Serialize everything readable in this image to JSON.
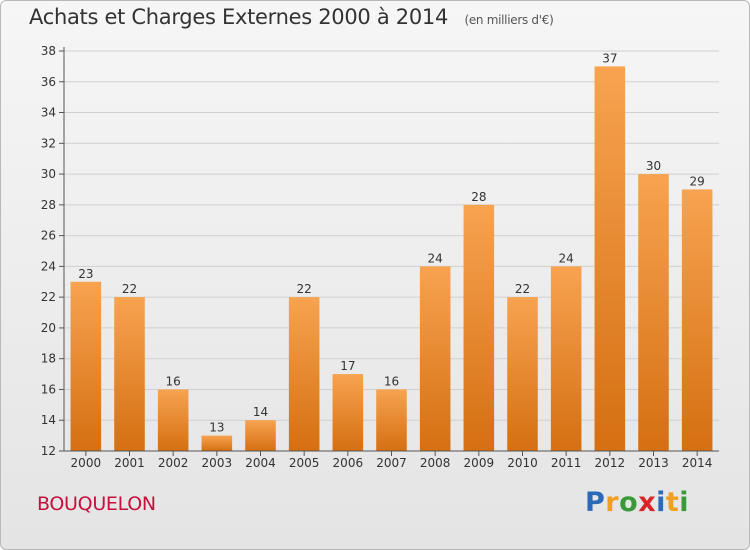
{
  "header": {
    "title": "Achats et Charges Externes 2000 à 2014",
    "subtitle": "(en milliers d'€)"
  },
  "commune": "BOUQUELON",
  "logo": {
    "text": "Proxiti",
    "letters": [
      {
        "ch": "P",
        "color": "#2a6ab8"
      },
      {
        "ch": "r",
        "color": "#f0a020"
      },
      {
        "ch": "o",
        "color": "#3a9a3a"
      },
      {
        "ch": "x",
        "color": "#d8252a"
      },
      {
        "ch": "i",
        "color": "#2a6ab8"
      },
      {
        "ch": "t",
        "color": "#f0a020"
      },
      {
        "ch": "i",
        "color": "#3a9a3a"
      }
    ]
  },
  "colors": {
    "bar_top": "#f7a350",
    "bar_bottom": "#d56f12",
    "axis": "#555555",
    "grid": "#d0d0d0"
  },
  "chart_data": {
    "type": "bar",
    "title": "Achats et Charges Externes 2000 à 2014",
    "subtitle": "(en milliers d'€)",
    "categories": [
      "2000",
      "2001",
      "2002",
      "2003",
      "2004",
      "2005",
      "2006",
      "2007",
      "2008",
      "2009",
      "2010",
      "2011",
      "2012",
      "2013",
      "2014"
    ],
    "values": [
      23,
      22,
      16,
      13,
      14,
      22,
      17,
      16,
      24,
      28,
      22,
      24,
      37,
      30,
      29
    ],
    "ylim": [
      12,
      38
    ],
    "yticks": [
      12,
      14,
      16,
      18,
      20,
      22,
      24,
      26,
      28,
      30,
      32,
      34,
      36,
      38
    ],
    "xlabel": "",
    "ylabel": "",
    "grid": true,
    "legend": "none"
  }
}
